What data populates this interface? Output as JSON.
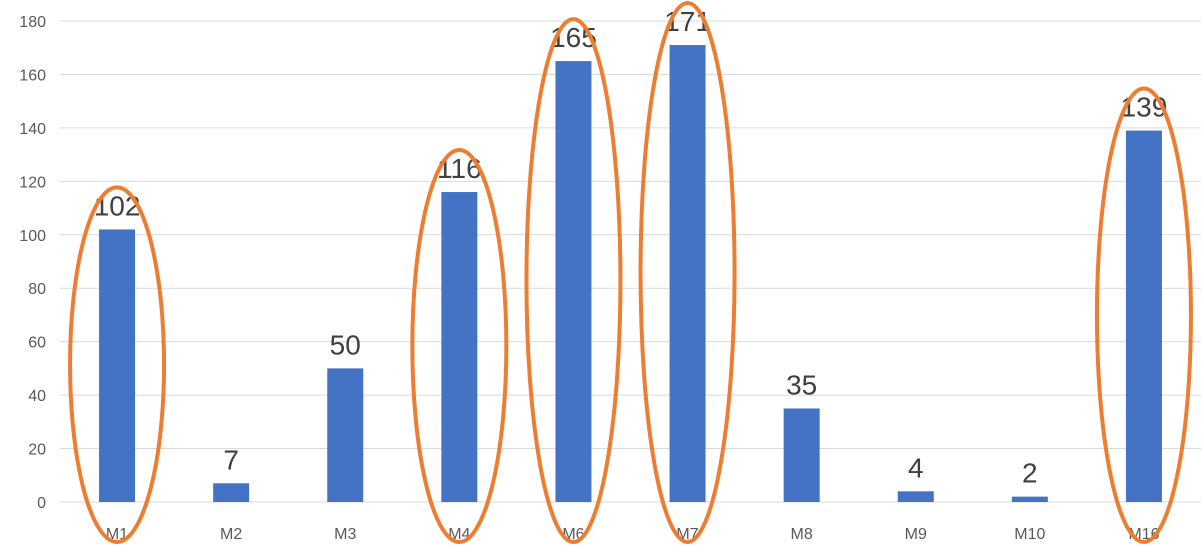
{
  "chart_data": {
    "type": "bar",
    "title": "",
    "xlabel": "",
    "ylabel": "",
    "categories": [
      "M1",
      "M2",
      "M3",
      "M4",
      "M6",
      "M7",
      "M8",
      "M9",
      "M10",
      "M16"
    ],
    "values": [
      102,
      7,
      50,
      116,
      165,
      171,
      35,
      4,
      2,
      139
    ],
    "data_labels": [
      "102",
      "7",
      "50",
      "116",
      "165",
      "171",
      "35",
      "4",
      "2",
      "139"
    ],
    "ylim": [
      0,
      180
    ],
    "yticks": [
      0,
      20,
      40,
      60,
      80,
      100,
      120,
      140,
      160,
      180
    ],
    "grid": true,
    "legend": "none",
    "highlighted_categories": [
      "M1",
      "M4",
      "M6",
      "M7",
      "M16"
    ],
    "colors": {
      "bar": "#4472C4",
      "highlight": "#ED7D31",
      "grid": "#D9D9D9",
      "tick_text": "#595959",
      "label_text": "#404040"
    }
  }
}
